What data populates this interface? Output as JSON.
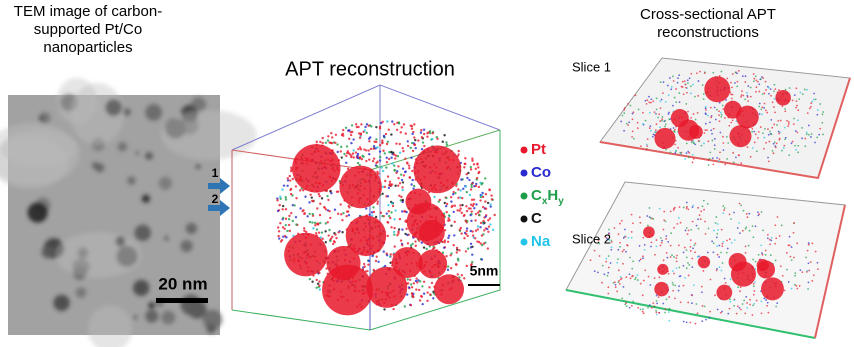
{
  "tem": {
    "title_lines": [
      "TEM image of carbon-",
      "supported Pt/Co",
      "nanoparticles"
    ],
    "scale_bar": "20 nm"
  },
  "apt": {
    "title": "APT reconstruction",
    "scale_bar": "5nm",
    "arrows": [
      "1",
      "2"
    ]
  },
  "legend": [
    {
      "parts": [
        "Pt"
      ],
      "color": "#e8192c"
    },
    {
      "parts": [
        "Co"
      ],
      "color": "#2a2ad0"
    },
    {
      "parts": [
        "C",
        "x",
        "H",
        "y"
      ],
      "color": "#1e9e4a"
    },
    {
      "parts": [
        "C"
      ],
      "color": "#111111"
    },
    {
      "parts": [
        "Na"
      ],
      "color": "#22c4e8"
    }
  ],
  "cross_section": {
    "title_lines": [
      "Cross-sectional APT",
      "reconstructions"
    ],
    "slices": [
      "Slice 1",
      "Slice 2"
    ]
  }
}
